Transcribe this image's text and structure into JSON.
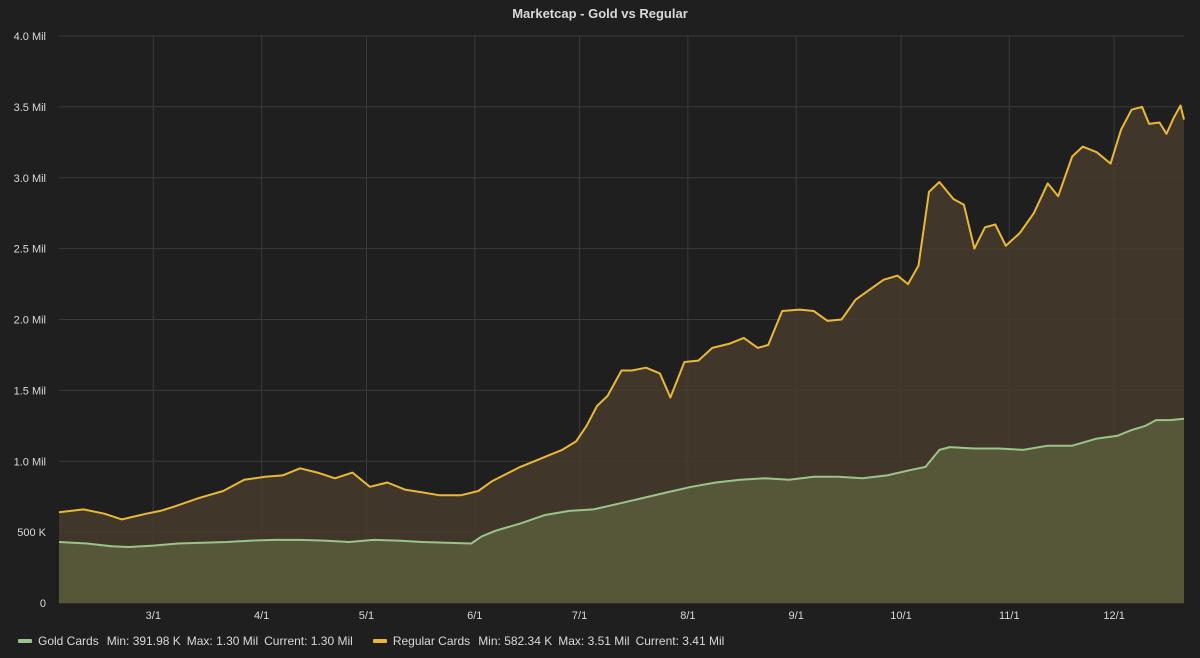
{
  "panel": {
    "title": "Marketcap - Gold vs Regular"
  },
  "colors": {
    "background": "#1f1f20",
    "grid": "#3a3a3c",
    "text": "#d8d9da",
    "gold_line": "#9ac48a",
    "gold_fill": "#5a5c3b",
    "regular_line": "#eab839",
    "regular_fill": "#473c2d"
  },
  "legend": {
    "placement": "bottom-left",
    "items": [
      {
        "name": "Gold Cards",
        "min": "Min: 391.98 K",
        "max": "Max: 1.30 Mil",
        "current": "Current: 1.30 Mil"
      },
      {
        "name": "Regular Cards",
        "min": "Min: 582.34 K",
        "max": "Max: 3.51 Mil",
        "current": "Current: 3.41 Mil"
      }
    ]
  },
  "chart_data": {
    "type": "area",
    "title": "Marketcap - Gold vs Regular",
    "xlabel": "",
    "ylabel": "",
    "x_range": [
      "2/2",
      "12/21"
    ],
    "xticks": [
      {
        "date": "3/1",
        "label": "3/1"
      },
      {
        "date": "4/1",
        "label": "4/1"
      },
      {
        "date": "5/1",
        "label": "5/1"
      },
      {
        "date": "6/1",
        "label": "6/1"
      },
      {
        "date": "7/1",
        "label": "7/1"
      },
      {
        "date": "8/1",
        "label": "8/1"
      },
      {
        "date": "9/1",
        "label": "9/1"
      },
      {
        "date": "10/1",
        "label": "10/1"
      },
      {
        "date": "11/1",
        "label": "11/1"
      },
      {
        "date": "12/1",
        "label": "12/1"
      }
    ],
    "ylim": [
      0,
      4000000
    ],
    "yticks": [
      {
        "value": 0,
        "label": "0"
      },
      {
        "value": 500000,
        "label": "500 K"
      },
      {
        "value": 1000000,
        "label": "1.0 Mil"
      },
      {
        "value": 1500000,
        "label": "1.5 Mil"
      },
      {
        "value": 2000000,
        "label": "2.0 Mil"
      },
      {
        "value": 2500000,
        "label": "2.5 Mil"
      },
      {
        "value": 3000000,
        "label": "3.0 Mil"
      },
      {
        "value": 3500000,
        "label": "3.5 Mil"
      },
      {
        "value": 4000000,
        "label": "4.0 Mil"
      }
    ],
    "grid": true,
    "stacked": false,
    "series": [
      {
        "name": "Gold Cards",
        "points": [
          [
            "2/2",
            430000
          ],
          [
            "2/10",
            420000
          ],
          [
            "2/17",
            400000
          ],
          [
            "2/22",
            395000
          ],
          [
            "3/1",
            405000
          ],
          [
            "3/8",
            420000
          ],
          [
            "3/15",
            425000
          ],
          [
            "3/22",
            430000
          ],
          [
            "3/29",
            440000
          ],
          [
            "4/5",
            445000
          ],
          [
            "4/12",
            445000
          ],
          [
            "4/19",
            440000
          ],
          [
            "4/26",
            430000
          ],
          [
            "5/3",
            445000
          ],
          [
            "5/10",
            440000
          ],
          [
            "5/17",
            430000
          ],
          [
            "5/24",
            425000
          ],
          [
            "5/31",
            420000
          ],
          [
            "6/3",
            470000
          ],
          [
            "6/7",
            510000
          ],
          [
            "6/14",
            560000
          ],
          [
            "6/21",
            620000
          ],
          [
            "6/28",
            650000
          ],
          [
            "7/5",
            660000
          ],
          [
            "7/12",
            700000
          ],
          [
            "7/19",
            740000
          ],
          [
            "7/26",
            780000
          ],
          [
            "8/2",
            820000
          ],
          [
            "8/9",
            850000
          ],
          [
            "8/16",
            870000
          ],
          [
            "8/23",
            880000
          ],
          [
            "8/30",
            870000
          ],
          [
            "9/6",
            890000
          ],
          [
            "9/13",
            890000
          ],
          [
            "9/20",
            880000
          ],
          [
            "9/27",
            900000
          ],
          [
            "10/4",
            940000
          ],
          [
            "10/8",
            960000
          ],
          [
            "10/12",
            1080000
          ],
          [
            "10/15",
            1100000
          ],
          [
            "10/22",
            1090000
          ],
          [
            "10/29",
            1090000
          ],
          [
            "11/5",
            1080000
          ],
          [
            "11/12",
            1110000
          ],
          [
            "11/19",
            1110000
          ],
          [
            "11/26",
            1160000
          ],
          [
            "12/2",
            1180000
          ],
          [
            "12/6",
            1220000
          ],
          [
            "12/10",
            1250000
          ],
          [
            "12/13",
            1290000
          ],
          [
            "12/17",
            1290000
          ],
          [
            "12/21",
            1300000
          ]
        ]
      },
      {
        "name": "Regular Cards",
        "points": [
          [
            "2/2",
            640000
          ],
          [
            "2/9",
            660000
          ],
          [
            "2/15",
            630000
          ],
          [
            "2/20",
            590000
          ],
          [
            "2/27",
            630000
          ],
          [
            "3/3",
            650000
          ],
          [
            "3/7",
            680000
          ],
          [
            "3/14",
            740000
          ],
          [
            "3/21",
            790000
          ],
          [
            "3/27",
            870000
          ],
          [
            "4/2",
            890000
          ],
          [
            "4/7",
            900000
          ],
          [
            "4/12",
            950000
          ],
          [
            "4/17",
            920000
          ],
          [
            "4/22",
            880000
          ],
          [
            "4/27",
            920000
          ],
          [
            "5/2",
            820000
          ],
          [
            "5/7",
            850000
          ],
          [
            "5/12",
            800000
          ],
          [
            "5/17",
            780000
          ],
          [
            "5/22",
            760000
          ],
          [
            "5/28",
            760000
          ],
          [
            "6/2",
            790000
          ],
          [
            "6/6",
            860000
          ],
          [
            "6/10",
            910000
          ],
          [
            "6/14",
            960000
          ],
          [
            "6/18",
            1000000
          ],
          [
            "6/22",
            1040000
          ],
          [
            "6/26",
            1080000
          ],
          [
            "6/30",
            1140000
          ],
          [
            "7/3",
            1250000
          ],
          [
            "7/6",
            1390000
          ],
          [
            "7/9",
            1460000
          ],
          [
            "7/13",
            1640000
          ],
          [
            "7/16",
            1640000
          ],
          [
            "7/20",
            1660000
          ],
          [
            "7/24",
            1620000
          ],
          [
            "7/27",
            1450000
          ],
          [
            "7/31",
            1700000
          ],
          [
            "8/4",
            1710000
          ],
          [
            "8/8",
            1800000
          ],
          [
            "8/13",
            1830000
          ],
          [
            "8/17",
            1870000
          ],
          [
            "8/21",
            1800000
          ],
          [
            "8/24",
            1820000
          ],
          [
            "8/28",
            2060000
          ],
          [
            "9/2",
            2070000
          ],
          [
            "9/6",
            2060000
          ],
          [
            "9/10",
            1990000
          ],
          [
            "9/14",
            2000000
          ],
          [
            "9/18",
            2140000
          ],
          [
            "9/22",
            2210000
          ],
          [
            "9/26",
            2280000
          ],
          [
            "9/30",
            2310000
          ],
          [
            "10/3",
            2250000
          ],
          [
            "10/6",
            2380000
          ],
          [
            "10/9",
            2900000
          ],
          [
            "10/12",
            2970000
          ],
          [
            "10/16",
            2850000
          ],
          [
            "10/19",
            2810000
          ],
          [
            "10/22",
            2500000
          ],
          [
            "10/25",
            2650000
          ],
          [
            "10/28",
            2670000
          ],
          [
            "10/31",
            2520000
          ],
          [
            "11/4",
            2610000
          ],
          [
            "11/8",
            2750000
          ],
          [
            "11/12",
            2960000
          ],
          [
            "11/15",
            2870000
          ],
          [
            "11/19",
            3150000
          ],
          [
            "11/22",
            3220000
          ],
          [
            "11/26",
            3180000
          ],
          [
            "11/30",
            3100000
          ],
          [
            "12/3",
            3340000
          ],
          [
            "12/6",
            3480000
          ],
          [
            "12/9",
            3500000
          ],
          [
            "12/11",
            3380000
          ],
          [
            "12/14",
            3390000
          ],
          [
            "12/16",
            3310000
          ],
          [
            "12/18",
            3420000
          ],
          [
            "12/20",
            3510000
          ],
          [
            "12/21",
            3410000
          ]
        ]
      }
    ]
  }
}
